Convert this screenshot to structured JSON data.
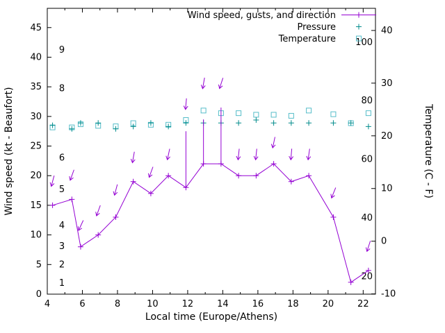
{
  "chart_data": {
    "type": "line",
    "xlabel": "Local time (Europe/Athens)",
    "ylabel_left": "Wind speed (kt - Beaufort)",
    "ylabel_right": "Temperature (C - F)",
    "legend_position": "top-right-inside",
    "grid": false,
    "axes": {
      "x": {
        "min": 4,
        "max": 22.7,
        "ticks": [
          4,
          6,
          8,
          10,
          12,
          14,
          16,
          18,
          20,
          22
        ],
        "minor_step": 1
      },
      "y_left": {
        "min": 0,
        "max": 48.25,
        "ticks": [
          0,
          5,
          10,
          15,
          20,
          25,
          30,
          35,
          40,
          45
        ]
      },
      "y_right": {
        "min": -10.05,
        "max": 44.2,
        "ticks": [
          -10,
          0,
          10,
          20,
          30,
          40
        ],
        "fahrenheit_ticks": [
          20,
          40,
          60,
          80,
          100
        ]
      }
    },
    "x": [
      4.3,
      5.4,
      5.9,
      6.9,
      7.9,
      8.9,
      9.9,
      10.9,
      11.9,
      12.9,
      13.9,
      14.9,
      15.9,
      16.9,
      17.9,
      18.9,
      20.3,
      21.3,
      22.3
    ],
    "series": [
      {
        "name": "Wind speed, gusts, and direction",
        "style": "linespoints",
        "marker": "plus",
        "color": "#9400d3",
        "axis": "left",
        "values": [
          15,
          16,
          8,
          10,
          13,
          19,
          17,
          20,
          18,
          22,
          22,
          20,
          20,
          22,
          19,
          20,
          13,
          2,
          4
        ]
      },
      {
        "name": "Pressure",
        "style": "points",
        "marker": "plus",
        "color": "#008b8b",
        "axis": "left",
        "values": [
          28.5,
          27.9,
          28.9,
          28.9,
          27.9,
          28.3,
          28.9,
          28.3,
          28.9,
          28.9,
          28.9,
          28.9,
          29.4,
          28.9,
          28.9,
          28.9,
          28.9,
          28.9,
          28.3
        ]
      },
      {
        "name": "Temperature",
        "style": "points",
        "marker": "square-open",
        "color": "#56bdc9",
        "axis": "right",
        "values": [
          21.6,
          21.6,
          22.2,
          21.9,
          21.8,
          22.4,
          22.1,
          22.1,
          23.0,
          24.8,
          24.3,
          24.3,
          24.0,
          24.0,
          23.8,
          24.8,
          24.1,
          22.4,
          24.3
        ]
      }
    ],
    "gusts": [
      {
        "x": 11.9,
        "from": 18,
        "to": 27.5
      },
      {
        "x": 12.9,
        "from": 22,
        "to": 29.5
      },
      {
        "x": 13.9,
        "from": 22,
        "to": 31.5
      }
    ],
    "wind_arrows": [
      {
        "x": 4.3,
        "y": 19,
        "angle": 15
      },
      {
        "x": 5.4,
        "y": 20,
        "angle": 20
      },
      {
        "x": 5.9,
        "y": 11.5,
        "angle": 25
      },
      {
        "x": 6.9,
        "y": 14,
        "angle": 20
      },
      {
        "x": 7.9,
        "y": 17.5,
        "angle": 15
      },
      {
        "x": 8.9,
        "y": 23,
        "angle": 10
      },
      {
        "x": 9.9,
        "y": 20.5,
        "angle": 20
      },
      {
        "x": 10.9,
        "y": 23.5,
        "angle": 12
      },
      {
        "x": 11.9,
        "y": 32,
        "angle": 5
      },
      {
        "x": 12.9,
        "y": 35.5,
        "angle": 10
      },
      {
        "x": 13.9,
        "y": 35.5,
        "angle": 18
      },
      {
        "x": 14.9,
        "y": 23.5,
        "angle": 6
      },
      {
        "x": 15.9,
        "y": 23.5,
        "angle": 6
      },
      {
        "x": 16.9,
        "y": 25.5,
        "angle": 12
      },
      {
        "x": 17.9,
        "y": 23.5,
        "angle": 5
      },
      {
        "x": 18.9,
        "y": 23.5,
        "angle": 8
      },
      {
        "x": 20.3,
        "y": 17,
        "angle": 22
      },
      {
        "x": 22.3,
        "y": 8,
        "angle": 18
      }
    ],
    "beaufort_labels": [
      {
        "label": "1",
        "y": 1.9
      },
      {
        "label": "2",
        "y": 5.0
      },
      {
        "label": "3",
        "y": 8.1
      },
      {
        "label": "4",
        "y": 11.6
      },
      {
        "label": "5",
        "y": 17.7
      },
      {
        "label": "6",
        "y": 23.0
      },
      {
        "label": "8",
        "y": 34.7
      },
      {
        "label": "9",
        "y": 41.2
      }
    ]
  }
}
